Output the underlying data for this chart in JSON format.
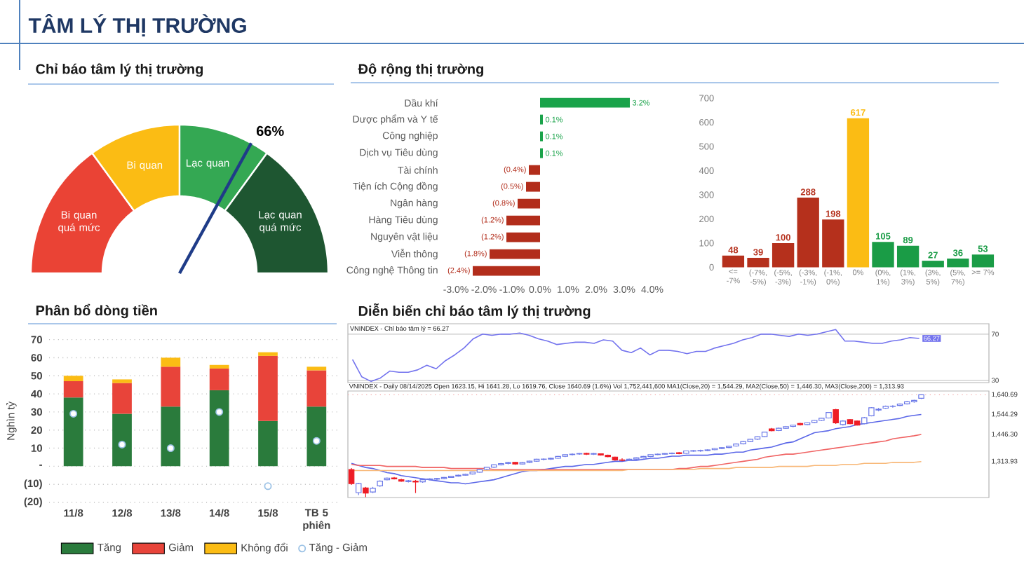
{
  "chart_data": [
    {
      "type": "other",
      "title": "TÂM LÝ THỊ TRƯỜNG"
    },
    {
      "type": "donut",
      "title": "Chỉ báo tâm lý thị trường",
      "categories": [
        "Bi quan quá mức",
        "Bi quan",
        "Lạc quan",
        "Lạc quan quá mức"
      ],
      "values": [
        30,
        20,
        20,
        30
      ],
      "colors": [
        "#ea4335",
        "#fbbc14",
        "#34a853",
        "#1e5631"
      ],
      "needle": "Lạc quan",
      "annotations": [
        "66%"
      ]
    },
    {
      "type": "bar",
      "orientation": "horizontal",
      "title": "Độ rộng thị trường",
      "categories": [
        "Dầu khí",
        "Dược phẩm và Y tế",
        "Công nghiệp",
        "Dịch vụ Tiêu dùng",
        "Tài chính",
        "Tiện ích Cộng đồng",
        "Ngân hàng",
        "Hàng Tiêu dùng",
        "Nguyên vật liệu",
        "Viễn thông",
        "Công nghệ Thông tin"
      ],
      "values": [
        3.2,
        0.1,
        0.1,
        0.1,
        -0.4,
        -0.5,
        -0.8,
        -1.2,
        -1.2,
        -1.8,
        -2.4
      ],
      "colors": [
        "#1aa34a",
        "#1aa34a",
        "#1aa34a",
        "#1aa34a",
        "#b22d1b",
        "#b22d1b",
        "#b22d1b",
        "#b22d1b",
        "#b22d1b",
        "#b22d1b",
        "#b22d1b"
      ],
      "value_labels": [
        "3.2%",
        "0.1%",
        "0.1%",
        "0.1%",
        "(0.4%)",
        "(0.5%)",
        "(0.8%)",
        "(1.2%)",
        "(1.2%)",
        "(1.8%)",
        "(2.4%)"
      ],
      "xlim": [
        -3,
        4
      ],
      "xticks": [
        {
          "value": -3,
          "label": "-3.0%"
        },
        {
          "value": -2,
          "label": "-2.0%"
        },
        {
          "value": -1,
          "label": "-1.0%"
        },
        {
          "value": 0,
          "label": "0.0%"
        },
        {
          "value": 1,
          "label": "1.0%"
        },
        {
          "value": 2,
          "label": "2.0%"
        },
        {
          "value": 3,
          "label": "3.0%"
        },
        {
          "value": 4,
          "label": "4.0%"
        }
      ]
    },
    {
      "type": "bar",
      "categories": [
        "<= -7%",
        "(-7%, -5%)",
        "(-5%, -3%)",
        "(-3%, -1%)",
        "(-1%, 0%)",
        "0%",
        "(0%, 1%)",
        "(1%, 3%)",
        "(3%, 5%)",
        "(5%, 7%)",
        ">= 7%"
      ],
      "values": [
        48,
        39,
        100,
        288,
        198,
        617,
        105,
        89,
        27,
        36,
        53
      ],
      "colors": [
        "#b5301c",
        "#b5301c",
        "#b5301c",
        "#b5301c",
        "#b5301c",
        "#fbbc14",
        "#1a9c46",
        "#1a9c46",
        "#1a9c46",
        "#1a9c46",
        "#1a9c46"
      ],
      "data_labels": true,
      "ylim": [
        0,
        700
      ],
      "yticks": [
        0,
        100,
        200,
        300,
        400,
        500,
        600,
        700
      ]
    },
    {
      "type": "bar",
      "stacked": true,
      "title": "Phân bổ dòng tiền",
      "ylabel": "Nghìn tỷ",
      "categories": [
        "11/8",
        "12/8",
        "13/8",
        "14/8",
        "15/8",
        "TB 5 phiên"
      ],
      "series": [
        {
          "name": "Tăng",
          "color": "#2a7b3c",
          "values": [
            38,
            29,
            33,
            42,
            25,
            33
          ]
        },
        {
          "name": "Giảm",
          "color": "#e8443a",
          "values": [
            9,
            17,
            22,
            12,
            36,
            20
          ]
        },
        {
          "name": "Không đổi",
          "color": "#fbbc14",
          "values": [
            3,
            2,
            5,
            2,
            2,
            2
          ]
        },
        {
          "name": "Tăng - Giảm",
          "type": "scatter",
          "color": "#9dc3e6",
          "x": [
            "11/8",
            "12/8",
            "13/8",
            "14/8",
            "15/8",
            "TB 5 phiên"
          ],
          "values": [
            29,
            12,
            10,
            30,
            -11,
            14
          ]
        }
      ],
      "ylim": [
        -20,
        70
      ],
      "yticks": [
        {
          "value": -20,
          "label": "(20)"
        },
        {
          "value": -10,
          "label": "(10)"
        },
        {
          "value": 0,
          "label": "-"
        },
        10,
        20,
        30,
        40,
        50,
        60,
        70
      ],
      "grid": "y",
      "legend": "bottom",
      "marker": "circle"
    },
    {
      "type": "line",
      "title": "Diễn biến chỉ báo tâm lý thị trường",
      "categories": [
        null,
        null,
        null,
        null,
        null,
        null,
        null,
        null,
        null,
        null,
        null,
        null,
        null,
        null,
        null,
        null,
        null,
        null,
        null,
        null,
        null,
        null,
        null,
        null,
        null,
        null,
        null,
        null,
        null,
        null,
        null,
        null,
        null,
        null,
        null,
        null,
        null,
        null,
        null,
        null,
        null,
        null,
        null,
        null,
        null,
        null,
        null,
        null,
        null,
        null,
        null,
        null,
        null,
        null,
        null,
        null,
        null,
        null,
        null,
        null,
        null,
        null,
        null,
        null,
        null,
        null,
        null,
        null,
        null
      ],
      "series": [
        {
          "color": "#7373ee",
          "values": [
            48,
            33,
            29,
            32,
            38,
            37,
            37,
            39,
            43,
            40,
            47,
            52,
            58,
            66,
            70,
            69,
            70,
            70,
            71,
            69,
            66,
            64,
            61,
            62,
            63,
            63,
            62,
            65,
            64,
            56,
            54,
            58,
            52,
            56,
            56,
            55,
            53,
            55,
            55,
            58,
            60,
            62,
            65,
            67,
            70,
            70,
            69,
            68,
            70,
            69,
            70,
            72,
            74,
            64,
            64,
            63,
            62,
            62,
            64,
            65,
            67,
            66.27,
            null,
            null,
            null,
            null,
            null,
            null,
            null
          ],
          "value_labels": [
            null,
            null,
            null,
            null,
            null,
            null,
            null,
            null,
            null,
            null,
            null,
            null,
            null,
            null,
            null,
            null,
            null,
            null,
            null,
            null,
            null,
            null,
            null,
            null,
            null,
            null,
            null,
            null,
            null,
            null,
            null,
            null,
            null,
            null,
            null,
            null,
            null,
            null,
            null,
            null,
            null,
            null,
            null,
            null,
            null,
            null,
            null,
            null,
            null,
            null,
            null,
            null,
            null,
            null,
            null,
            null,
            null,
            null,
            null,
            null,
            null,
            "66.27",
            null,
            null,
            null,
            null,
            null,
            null,
            null
          ]
        }
      ],
      "ylim": [
        28,
        79
      ],
      "yticks": [
        30,
        70
      ],
      "grid": "y",
      "tick_labels": "y",
      "annotations": [
        "VNINDEX - Chỉ báo tâm lý = 66.27"
      ]
    },
    {
      "type": "candlestick",
      "categories": [
        null,
        null,
        null,
        null,
        null,
        null,
        null,
        null,
        null,
        null,
        null,
        null,
        null,
        null,
        null,
        null,
        null,
        null,
        null,
        null,
        null,
        null,
        null,
        null,
        null,
        null,
        null,
        null,
        null,
        null,
        null,
        null,
        null,
        null,
        null,
        null,
        null,
        null,
        null,
        null,
        null,
        null,
        null,
        null,
        null,
        null,
        null,
        null,
        null,
        null,
        null,
        null,
        null,
        null,
        null,
        null,
        null,
        null,
        null,
        null,
        null,
        null,
        null,
        null,
        null,
        null,
        null,
        null,
        null,
        null,
        null,
        null,
        null,
        null,
        null,
        null,
        null,
        null,
        null,
        null,
        null,
        null,
        null,
        null,
        null,
        null,
        null,
        null,
        null,
        null
      ],
      "ohlc": [
        [
          1275,
          1282,
          1200,
          1206
        ],
        [
          1162,
          1210,
          1150,
          1206
        ],
        [
          1185,
          1190,
          1140,
          1160
        ],
        [
          1165,
          1190,
          1160,
          1183
        ],
        [
          1195,
          1222,
          1190,
          1218
        ],
        [
          1225,
          1236,
          1222,
          1233
        ],
        [
          1234,
          1238,
          1226,
          1229
        ],
        [
          1225,
          1230,
          1215,
          1218
        ],
        [
          1216,
          1224,
          1212,
          1220
        ],
        [
          1218,
          1224,
          1160,
          1214
        ],
        [
          1215,
          1228,
          1210,
          1225
        ],
        [
          1226,
          1232,
          1222,
          1229
        ],
        [
          1228,
          1234,
          1224,
          1231
        ],
        [
          1231,
          1238,
          1228,
          1236
        ],
        [
          1236,
          1244,
          1234,
          1242
        ],
        [
          1243,
          1250,
          1240,
          1247
        ],
        [
          1247,
          1255,
          1245,
          1252
        ],
        [
          1253,
          1265,
          1250,
          1263
        ],
        [
          1262,
          1277,
          1260,
          1275
        ],
        [
          1276,
          1288,
          1272,
          1286
        ],
        [
          1287,
          1300,
          1283,
          1298
        ],
        [
          1298,
          1307,
          1295,
          1304
        ],
        [
          1305,
          1312,
          1300,
          1309
        ],
        [
          1310,
          1312,
          1298,
          1302
        ],
        [
          1302,
          1312,
          1300,
          1309
        ],
        [
          1310,
          1318,
          1306,
          1316
        ],
        [
          1316,
          1327,
          1313,
          1325
        ],
        [
          1325,
          1329,
          1320,
          1326
        ],
        [
          1326,
          1333,
          1322,
          1330
        ],
        [
          1330,
          1341,
          1327,
          1339
        ],
        [
          1340,
          1350,
          1336,
          1348
        ],
        [
          1348,
          1354,
          1344,
          1350
        ],
        [
          1351,
          1356,
          1347,
          1353
        ],
        [
          1354,
          1357,
          1346,
          1350
        ],
        [
          1350,
          1356,
          1346,
          1353
        ],
        [
          1352,
          1354,
          1343,
          1346
        ],
        [
          1345,
          1348,
          1335,
          1338
        ],
        [
          1336,
          1338,
          1318,
          1322
        ],
        [
          1322,
          1330,
          1315,
          1320
        ],
        [
          1320,
          1328,
          1316,
          1325
        ],
        [
          1326,
          1334,
          1323,
          1332
        ],
        [
          1332,
          1341,
          1329,
          1339
        ],
        [
          1339,
          1349,
          1336,
          1348
        ],
        [
          1348,
          1353,
          1345,
          1350
        ],
        [
          1350,
          1355,
          1347,
          1353
        ],
        [
          1353,
          1358,
          1350,
          1355
        ],
        [
          1357,
          1360,
          1350,
          1353
        ],
        [
          1354,
          1368,
          1352,
          1366
        ],
        [
          1365,
          1370,
          1362,
          1367
        ],
        [
          1366,
          1372,
          1362,
          1368
        ],
        [
          1368,
          1374,
          1365,
          1371
        ],
        [
          1372,
          1380,
          1369,
          1378
        ],
        [
          1378,
          1385,
          1375,
          1382
        ],
        [
          1383,
          1392,
          1380,
          1389
        ],
        [
          1390,
          1403,
          1387,
          1400
        ],
        [
          1401,
          1415,
          1398,
          1412
        ],
        [
          1412,
          1426,
          1409,
          1423
        ],
        [
          1424,
          1437,
          1420,
          1435
        ],
        [
          1436,
          1460,
          1433,
          1458
        ],
        [
          1474,
          1478,
          1462,
          1465
        ],
        [
          1466,
          1480,
          1463,
          1477
        ],
        [
          1477,
          1488,
          1474,
          1485
        ],
        [
          1486,
          1494,
          1482,
          1492
        ],
        [
          1500,
          1503,
          1490,
          1494
        ],
        [
          1495,
          1506,
          1492,
          1504
        ],
        [
          1505,
          1517,
          1502,
          1515
        ],
        [
          1515,
          1528,
          1512,
          1526
        ],
        [
          1527,
          1556,
          1525,
          1554
        ],
        [
          1568,
          1572,
          1498,
          1503
        ],
        [
          1495,
          1516,
          1490,
          1512
        ],
        [
          1519,
          1522,
          1497,
          1499
        ],
        [
          1512,
          1515,
          1490,
          1492
        ],
        [
          1499,
          1532,
          1496,
          1528
        ],
        [
          1538,
          1580,
          1535,
          1577
        ],
        [
          1566,
          1576,
          1560,
          1570
        ],
        [
          1575,
          1588,
          1572,
          1584
        ],
        [
          1584,
          1590,
          1578,
          1585
        ],
        [
          1588,
          1598,
          1585,
          1595
        ],
        [
          1596,
          1610,
          1593,
          1606
        ],
        [
          1606,
          1616,
          1602,
          1613
        ],
        [
          1623.15,
          1641.28,
          1619.76,
          1640.69
        ],
        null,
        null,
        null,
        null,
        null,
        null,
        null,
        null,
        null
      ],
      "colors": [
        "#ee1c25",
        "#6a78e8",
        "#ee1c25",
        "#6a78e8",
        "#6a78e8",
        "#6a78e8",
        "#ee1c25",
        "#ee1c25",
        "#6a78e8",
        "#ee1c25",
        "#6a78e8",
        "#6a78e8",
        "#6a78e8",
        "#6a78e8",
        "#6a78e8",
        "#6a78e8",
        "#6a78e8",
        "#6a78e8",
        "#6a78e8",
        "#6a78e8",
        "#6a78e8",
        "#6a78e8",
        "#6a78e8",
        "#ee1c25",
        "#6a78e8",
        "#6a78e8",
        "#6a78e8",
        "#6a78e8",
        "#6a78e8",
        "#6a78e8",
        "#6a78e8",
        "#6a78e8",
        "#6a78e8",
        "#ee1c25",
        "#6a78e8",
        "#ee1c25",
        "#ee1c25",
        "#ee1c25",
        "#ee1c25",
        "#6a78e8",
        "#6a78e8",
        "#6a78e8",
        "#6a78e8",
        "#6a78e8",
        "#6a78e8",
        "#6a78e8",
        "#ee1c25",
        "#6a78e8",
        "#6a78e8",
        "#6a78e8",
        "#6a78e8",
        "#6a78e8",
        "#6a78e8",
        "#6a78e8",
        "#6a78e8",
        "#6a78e8",
        "#6a78e8",
        "#6a78e8",
        "#6a78e8",
        "#ee1c25",
        "#6a78e8",
        "#6a78e8",
        "#6a78e8",
        "#ee1c25",
        "#6a78e8",
        "#6a78e8",
        "#6a78e8",
        "#6a78e8",
        "#ee1c25",
        "#6a78e8",
        "#ee1c25",
        "#ee1c25",
        "#6a78e8",
        "#6a78e8",
        "#6a78e8",
        "#6a78e8",
        "#6a78e8",
        "#6a78e8",
        "#6a78e8",
        "#6a78e8",
        "#6a78e8",
        null,
        null,
        null,
        null,
        null,
        null,
        null,
        null,
        null
      ],
      "series": [
        {
          "type": "line",
          "color": "#5b67e8",
          "values": [
            1305,
            1295,
            1285,
            1280,
            1270,
            1260,
            1255,
            1245,
            1240,
            1235,
            1230,
            1225,
            1220,
            1215,
            1210,
            1210,
            1205,
            1210,
            1215,
            1220,
            1225,
            1235,
            1245,
            1255,
            1265,
            1270,
            1270,
            1275,
            1280,
            1285,
            1290,
            1290,
            1295,
            1300,
            1300,
            1305,
            1310,
            1315,
            1315,
            1320,
            1320,
            1325,
            1330,
            1330,
            1335,
            1340,
            1340,
            1345,
            1345,
            1345,
            1345,
            1350,
            1350,
            1355,
            1360,
            1360,
            1370,
            1375,
            1380,
            1385,
            1395,
            1405,
            1410,
            1425,
            1440,
            1455,
            1460,
            1465,
            1475,
            1480,
            1485,
            1495,
            1500,
            1505,
            1510,
            1515,
            1520,
            1525,
            1535,
            1540,
            1544.29,
            null,
            null,
            null,
            null,
            null,
            null,
            null,
            null,
            null
          ]
        },
        {
          "type": "line",
          "color": "#f06464",
          "values": [
            1300,
            1295,
            1295,
            1295,
            1295,
            1290,
            1290,
            1290,
            1290,
            1290,
            1285,
            1285,
            1285,
            1285,
            1280,
            1280,
            1280,
            1280,
            1280,
            1280,
            1275,
            1275,
            1275,
            1275,
            1275,
            1275,
            1275,
            1275,
            1275,
            1275,
            1275,
            1275,
            1275,
            1275,
            1275,
            1275,
            1275,
            1275,
            1275,
            1275,
            1275,
            1275,
            1275,
            1275,
            1275,
            1275,
            1280,
            1280,
            1285,
            1290,
            1290,
            1295,
            1300,
            1305,
            1310,
            1315,
            1320,
            1325,
            1335,
            1340,
            1345,
            1350,
            1350,
            1355,
            1360,
            1365,
            1370,
            1375,
            1380,
            1385,
            1390,
            1395,
            1400,
            1405,
            1410,
            1415,
            1425,
            1430,
            1435,
            1440,
            1446.3,
            null,
            null,
            null,
            null,
            null,
            null,
            null,
            null,
            null
          ]
        },
        {
          "type": "line",
          "color": "#f8b878",
          "values": [
            1270,
            1270,
            1270,
            1270,
            1270,
            1270,
            1270,
            1270,
            1270,
            1270,
            1270,
            1270,
            1270,
            1270,
            1270,
            1270,
            1270,
            1270,
            1270,
            1270,
            1270,
            1270,
            1270,
            1270,
            1270,
            1270,
            1270,
            1270,
            1270,
            1270,
            1270,
            1270,
            1270,
            1270,
            1270,
            1270,
            1270,
            1270,
            1270,
            1275,
            1275,
            1275,
            1275,
            1275,
            1275,
            1275,
            1275,
            1275,
            1275,
            1280,
            1280,
            1280,
            1280,
            1280,
            1285,
            1285,
            1285,
            1285,
            1285,
            1285,
            1290,
            1290,
            1290,
            1290,
            1290,
            1295,
            1295,
            1295,
            1295,
            1300,
            1300,
            1300,
            1305,
            1305,
            1305,
            1305,
            1310,
            1310,
            1310,
            1310,
            1313.93,
            null,
            null,
            null,
            null,
            null,
            null,
            null,
            null,
            null
          ]
        }
      ],
      "ylim": [
        1138,
        1659
      ],
      "yticks": [
        {
          "value": 1313.93,
          "label": "1,313.93"
        },
        {
          "value": 1446.3,
          "label": "1,446.30"
        },
        {
          "value": 1544.29,
          "label": "1,544.29"
        },
        {
          "value": 1640.69,
          "label": "1,640.69"
        }
      ],
      "tick_labels": "y",
      "ref_lines": [
        {
          "axis": "y",
          "value": 1640.69,
          "color": "#f4a6a6",
          "line_style": "dotted"
        }
      ],
      "annotations": [
        "VNINDEX - Daily 08/14/2025 Open 1623.15, Hi 1641.28, Lo 1619.76, Close 1640.69 (1.6%) Vol 1,752,441,600 MA1(Close,20) = 1,544.29, MA2(Close,50) = 1,446.30, MA3(Close,200) = 1,313.93"
      ]
    }
  ]
}
